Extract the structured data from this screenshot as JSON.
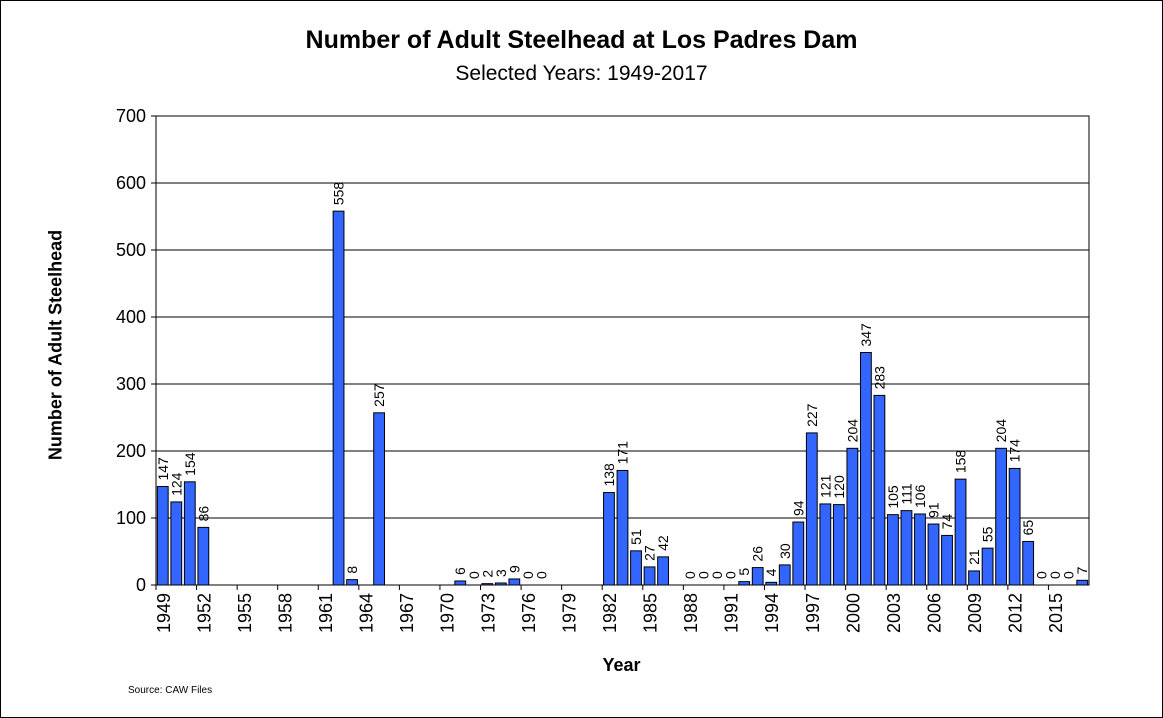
{
  "chart_data": {
    "type": "bar",
    "title": "Number of Adult Steelhead at Los Padres Dam",
    "subtitle": "Selected Years: 1949-2017",
    "xlabel": "Year",
    "ylabel": "Number of Adult Steelhead",
    "source": "Source:  CAW Files",
    "ylim": [
      0,
      700
    ],
    "yticks": [
      0,
      100,
      200,
      300,
      400,
      500,
      600,
      700
    ],
    "grid": true,
    "bar_color": "#3366ff",
    "x_tick_labels": [
      "1949",
      "1952",
      "1955",
      "1958",
      "1961",
      "1964",
      "1967",
      "1970",
      "1973",
      "1976",
      "1979",
      "1982",
      "1985",
      "1988",
      "1991",
      "1994",
      "1997",
      "2000",
      "2003",
      "2006",
      "2009",
      "2012",
      "2015"
    ],
    "categories": [
      1949,
      1950,
      1951,
      1952,
      1953,
      1954,
      1955,
      1956,
      1957,
      1958,
      1959,
      1960,
      1961,
      1962,
      1963,
      1964,
      1965,
      1966,
      1967,
      1968,
      1969,
      1970,
      1971,
      1972,
      1973,
      1974,
      1975,
      1976,
      1977,
      1978,
      1979,
      1980,
      1981,
      1982,
      1983,
      1984,
      1985,
      1986,
      1987,
      1988,
      1989,
      1990,
      1991,
      1992,
      1993,
      1994,
      1995,
      1996,
      1997,
      1998,
      1999,
      2000,
      2001,
      2002,
      2003,
      2004,
      2005,
      2006,
      2007,
      2008,
      2009,
      2010,
      2011,
      2012,
      2013,
      2014,
      2015,
      2016,
      2017
    ],
    "values": [
      147,
      124,
      154,
      86,
      null,
      null,
      null,
      null,
      null,
      null,
      null,
      null,
      null,
      558,
      8,
      null,
      257,
      null,
      null,
      null,
      null,
      null,
      6,
      0,
      2,
      3,
      9,
      0,
      0,
      null,
      null,
      null,
      null,
      138,
      171,
      51,
      27,
      42,
      null,
      0,
      0,
      0,
      0,
      5,
      26,
      4,
      30,
      94,
      227,
      121,
      120,
      204,
      347,
      283,
      105,
      111,
      106,
      91,
      74,
      158,
      21,
      55,
      204,
      174,
      65,
      0,
      0,
      0,
      7
    ]
  }
}
